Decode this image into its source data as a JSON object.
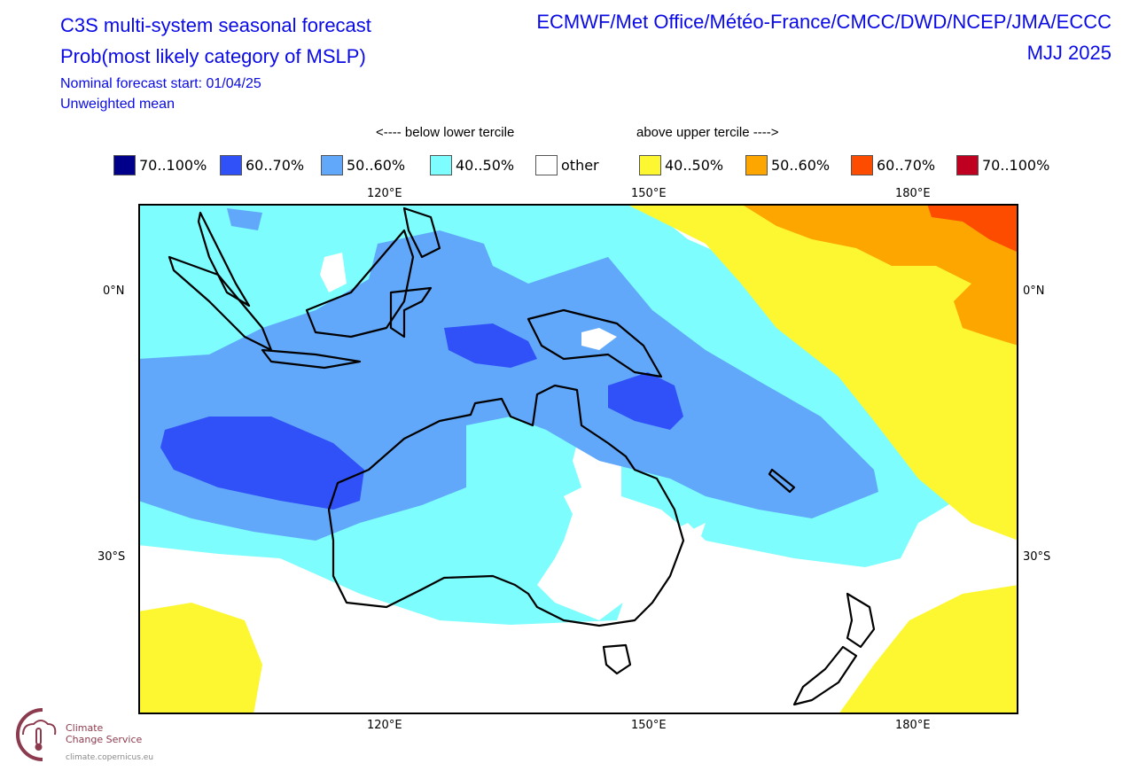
{
  "header": {
    "title_line1": "C3S multi-system seasonal forecast",
    "title_line2": "Prob(most likely category of MSLP)",
    "subtitle_start": "Nominal forecast start: 01/04/25",
    "subtitle_mean": "Unweighted mean",
    "centres": "ECMWF/Met Office/Météo-France/CMCC/DWD/NCEP/JMA/ECCC",
    "period": "MJJ 2025"
  },
  "legend": {
    "below_label": "<---- below lower tercile",
    "above_label": "above upper tercile ---->",
    "items": [
      {
        "label": "70..100%",
        "color": "#00008b",
        "category": "below"
      },
      {
        "label": "60..70%",
        "color": "#3050f8",
        "category": "below"
      },
      {
        "label": "50..60%",
        "color": "#62a8fa",
        "category": "below"
      },
      {
        "label": "40..50%",
        "color": "#7dfdfe",
        "category": "below"
      },
      {
        "label": "other",
        "color": "#ffffff",
        "category": "other"
      },
      {
        "label": "40..50%",
        "color": "#fdf732",
        "category": "above"
      },
      {
        "label": "50..60%",
        "color": "#fda600",
        "category": "above"
      },
      {
        "label": "60..70%",
        "color": "#fd4b00",
        "category": "above"
      },
      {
        "label": "70..100%",
        "color": "#c00020",
        "category": "above"
      }
    ]
  },
  "axes": {
    "lon_ticks": [
      "120°E",
      "150°E",
      "180°E"
    ],
    "lat_ticks": [
      "0°N",
      "30°S"
    ]
  },
  "logo": {
    "line1": "Climate",
    "line2": "Change Service",
    "url": "climate.copernicus.eu"
  }
}
